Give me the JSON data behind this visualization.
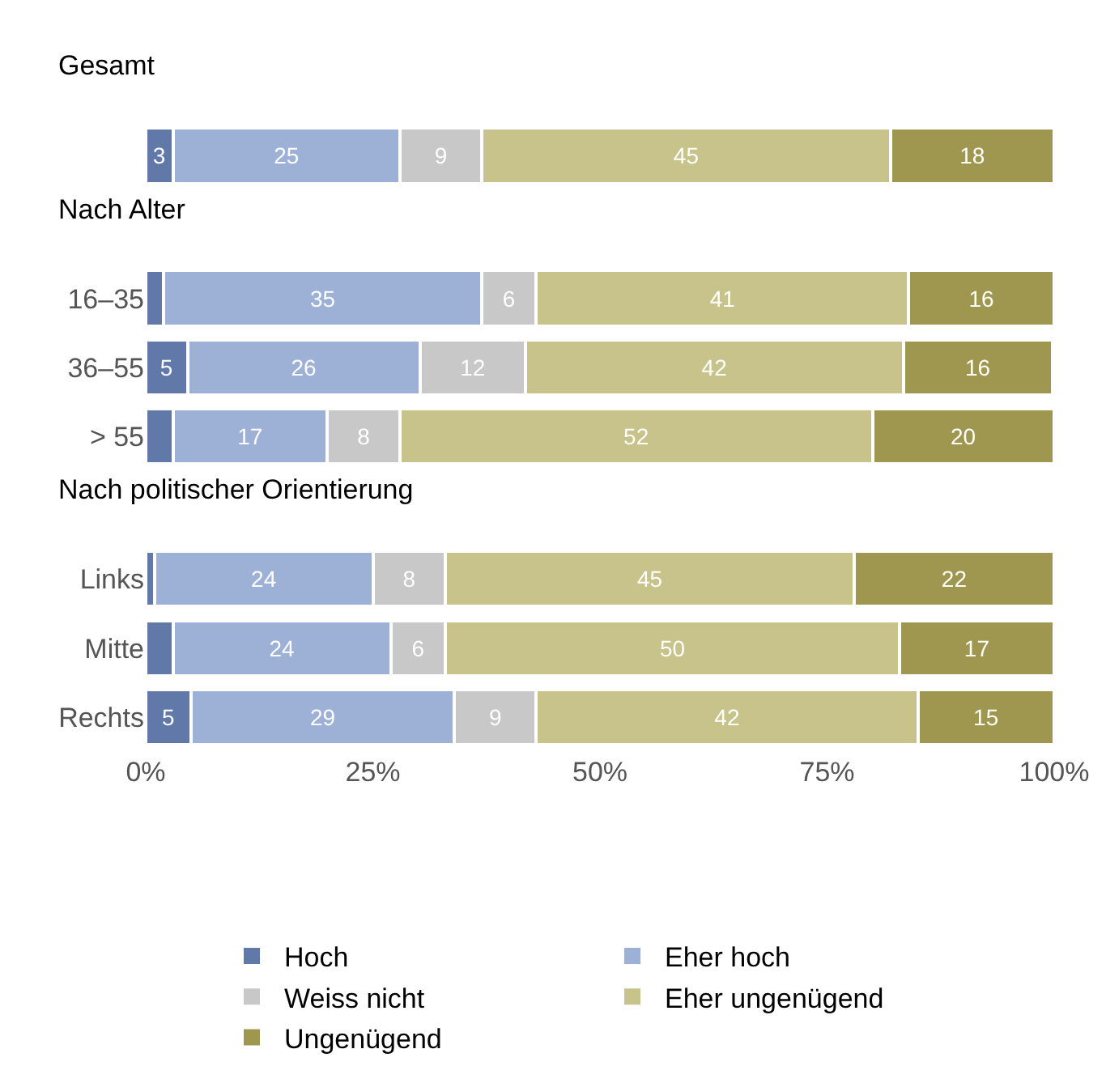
{
  "chart_data": [
    {
      "type": "bar",
      "orientation": "horizontal",
      "stacked": true,
      "title": "Gesamt",
      "legend": "bottom",
      "categories": [
        null
      ],
      "xlim": [
        0,
        100
      ],
      "tick_labels": "y",
      "series": [
        {
          "name": "Hoch",
          "color": "#6179a8",
          "values": [
            3
          ],
          "value_labels": [
            "3"
          ]
        },
        {
          "name": "Eher hoch",
          "color": "#9db0d6",
          "values": [
            25
          ],
          "value_labels": [
            "25"
          ]
        },
        {
          "name": "Weiss nicht",
          "color": "#c8c8c8",
          "values": [
            9
          ],
          "value_labels": [
            "9"
          ]
        },
        {
          "name": "Eher ungenügend",
          "color": "#c8c38a",
          "values": [
            45
          ],
          "value_labels": [
            "45"
          ]
        },
        {
          "name": "Ungenügend",
          "color": "#9f974f",
          "values": [
            18
          ],
          "value_labels": [
            "18"
          ]
        }
      ]
    },
    {
      "type": "bar",
      "orientation": "horizontal",
      "stacked": true,
      "title": "Nach Alter",
      "categories": [
        "16–35",
        "36–55",
        "> 55"
      ],
      "xlim": [
        0,
        100
      ],
      "tick_labels": "y",
      "series": [
        {
          "color": "#6179a8",
          "values": [
            2,
            4.6,
            3
          ],
          "value_labels": [
            null,
            "5",
            null
          ]
        },
        {
          "color": "#9db0d6",
          "values": [
            35,
            25.6,
            17
          ],
          "value_labels": [
            "35",
            "26",
            "17"
          ]
        },
        {
          "color": "#c8c8c8",
          "values": [
            6,
            11.6,
            8
          ],
          "value_labels": [
            "6",
            "12",
            "8"
          ]
        },
        {
          "color": "#c8c38a",
          "values": [
            41,
            41.6,
            52
          ],
          "value_labels": [
            "41",
            "42",
            "52"
          ]
        },
        {
          "color": "#9f974f",
          "values": [
            16,
            16.4,
            20
          ],
          "value_labels": [
            "16",
            "16",
            "20"
          ]
        }
      ]
    },
    {
      "type": "bar",
      "orientation": "horizontal",
      "stacked": true,
      "title": "Nach politischer Orientierung",
      "categories": [
        "Links",
        "Mitte",
        "Rechts"
      ],
      "xlim": [
        0,
        100
      ],
      "xticks": [
        {
          "value": 0,
          "label": "0%"
        },
        {
          "value": 25,
          "label": "25%"
        },
        {
          "value": 50,
          "label": "50%"
        },
        {
          "value": 75,
          "label": "75%"
        },
        {
          "value": 100,
          "label": "100%"
        }
      ],
      "series": [
        {
          "color": "#6179a8",
          "values": [
            1,
            3,
            5
          ],
          "value_labels": [
            null,
            null,
            "5"
          ]
        },
        {
          "color": "#9db0d6",
          "values": [
            24,
            24,
            29
          ],
          "value_labels": [
            "24",
            "24",
            "29"
          ]
        },
        {
          "color": "#c8c8c8",
          "values": [
            8,
            6,
            9
          ],
          "value_labels": [
            "8",
            "6",
            "9"
          ]
        },
        {
          "color": "#c8c38a",
          "values": [
            45,
            50,
            42
          ],
          "value_labels": [
            "45",
            "50",
            "42"
          ]
        },
        {
          "color": "#9f974f",
          "values": [
            22,
            17,
            15
          ],
          "value_labels": [
            "22",
            "17",
            "15"
          ]
        }
      ]
    }
  ]
}
